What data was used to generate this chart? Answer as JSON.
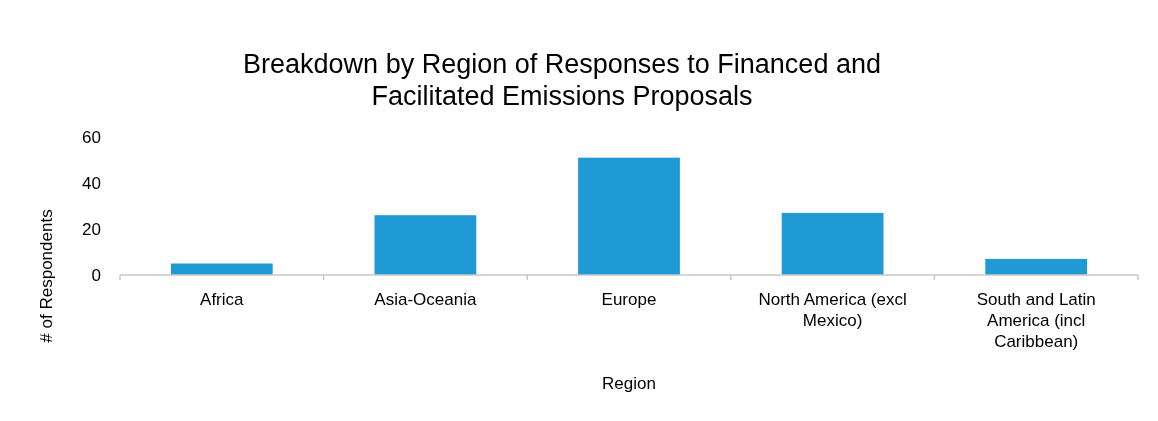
{
  "chart_data": {
    "type": "bar",
    "title": "Breakdown by Region of Responses to Financed and Facilitated Emissions Proposals",
    "xlabel": "Region",
    "ylabel": "# of Respondents",
    "categories": [
      "Africa",
      "Asia-Oceania",
      "Europe",
      "North America (excl Mexico)",
      "South and Latin America (incl Caribbean)"
    ],
    "values": [
      5,
      26,
      51,
      27,
      7
    ],
    "color": "#1f9ad4",
    "ylim": [
      0,
      60
    ],
    "yticks": [
      0,
      20,
      40,
      60
    ],
    "grid": false
  }
}
